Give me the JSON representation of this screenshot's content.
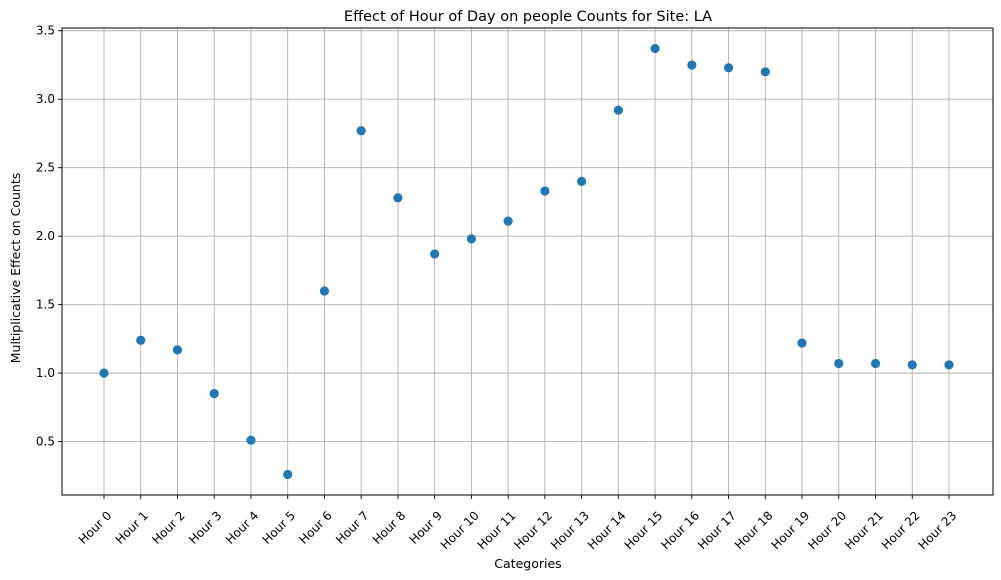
{
  "chart_data": {
    "type": "scatter",
    "title": "Effect of Hour of Day on people Counts for Site: LA",
    "xlabel": "Categories",
    "ylabel": "Multiplicative Effect on Counts",
    "categories": [
      "Hour 0",
      "Hour 1",
      "Hour 2",
      "Hour 3",
      "Hour 4",
      "Hour 5",
      "Hour 6",
      "Hour 7",
      "Hour 8",
      "Hour 9",
      "Hour 10",
      "Hour 11",
      "Hour 12",
      "Hour 13",
      "Hour 14",
      "Hour 15",
      "Hour 16",
      "Hour 17",
      "Hour 18",
      "Hour 19",
      "Hour 20",
      "Hour 21",
      "Hour 22",
      "Hour 23"
    ],
    "values": [
      1.0,
      1.24,
      1.17,
      0.85,
      0.51,
      0.26,
      1.6,
      2.77,
      2.28,
      1.87,
      1.98,
      2.11,
      2.33,
      2.4,
      2.92,
      3.37,
      3.25,
      3.23,
      3.2,
      1.22,
      1.07,
      1.07,
      1.06,
      1.06
    ],
    "ylim": [
      0.11,
      3.52
    ],
    "yticks": [
      0.5,
      1.0,
      1.5,
      2.0,
      2.5,
      3.0,
      3.5
    ],
    "ytick_labels": [
      "0.5",
      "1.0",
      "1.5",
      "2.0",
      "2.5",
      "3.0",
      "3.5"
    ],
    "grid": true,
    "marker_color": "#1f77b4",
    "grid_color": "#b0b0b0",
    "axis_color": "#000000"
  }
}
